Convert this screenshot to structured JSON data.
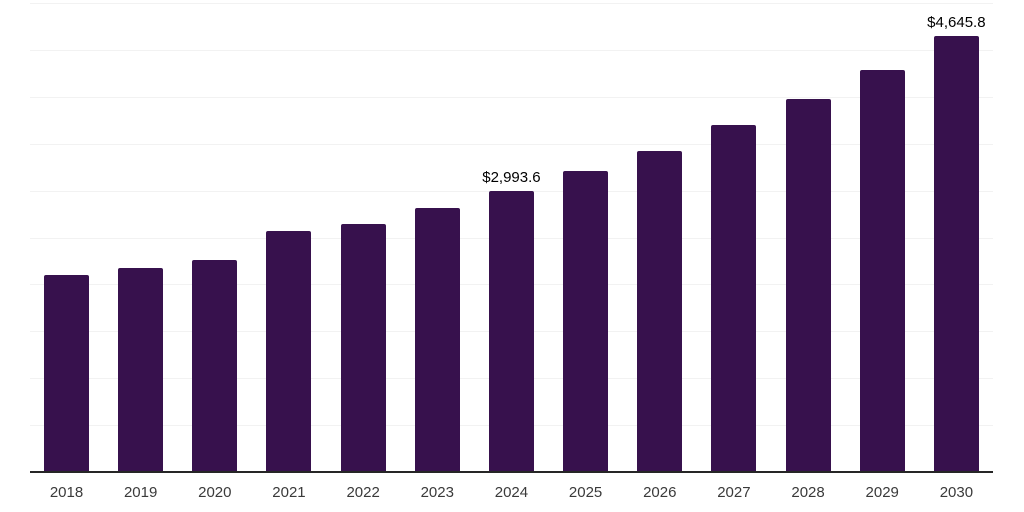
{
  "chart_data": {
    "type": "bar",
    "title": "",
    "xlabel": "",
    "ylabel": "",
    "categories": [
      "2018",
      "2019",
      "2020",
      "2021",
      "2022",
      "2023",
      "2024",
      "2025",
      "2026",
      "2027",
      "2028",
      "2029",
      "2030"
    ],
    "values": [
      2100,
      2180,
      2260,
      2570,
      2645,
      2810,
      2993.6,
      3210,
      3420,
      3700,
      3975,
      4290,
      4645.8
    ],
    "data_labels": [
      {
        "category": "2024",
        "text": "$2,993.6"
      },
      {
        "category": "2030",
        "text": "$4,645.8"
      }
    ],
    "ylim": [
      0,
      5000
    ],
    "gridline_step": 500,
    "grid": "horizontal",
    "legend": "none",
    "y_axis_tick_labels": "none",
    "colors": {
      "bar": "#37114d",
      "gridline": "#f2f2f2",
      "axis_line": "#262626",
      "axis_label": "#3a3a3a",
      "data_label": "#000000",
      "background": "#ffffff"
    }
  }
}
